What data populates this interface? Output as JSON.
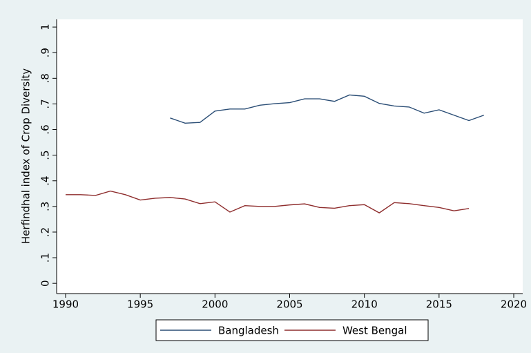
{
  "chart_data": {
    "type": "line",
    "y_label": "Herfindhal index of Crop Diversity",
    "x": [
      1990,
      1991,
      1992,
      1993,
      1994,
      1995,
      1996,
      1997,
      1998,
      1999,
      2000,
      2001,
      2002,
      2003,
      2004,
      2005,
      2006,
      2007,
      2008,
      2009,
      2010,
      2011,
      2012,
      2013,
      2014,
      2015,
      2016,
      2017,
      2018
    ],
    "series": [
      {
        "name": "Bangladesh",
        "color": "#2a4d75",
        "values": [
          null,
          null,
          null,
          null,
          null,
          null,
          null,
          0.645,
          0.625,
          0.628,
          0.672,
          0.68,
          0.68,
          0.695,
          0.701,
          0.705,
          0.72,
          0.72,
          0.71,
          0.735,
          0.73,
          0.702,
          0.692,
          0.688,
          0.664,
          0.677,
          0.656,
          0.635,
          0.656
        ]
      },
      {
        "name": "West Bengal",
        "color": "#8e2d2d",
        "values": [
          0.346,
          0.346,
          0.343,
          0.36,
          0.346,
          0.325,
          0.332,
          0.335,
          0.329,
          0.311,
          0.318,
          0.278,
          0.303,
          0.3,
          0.3,
          0.306,
          0.31,
          0.296,
          0.293,
          0.303,
          0.307,
          0.275,
          0.315,
          0.311,
          0.303,
          0.296,
          0.283,
          0.292,
          null
        ]
      }
    ],
    "xlim": [
      1989.4,
      2020.6
    ],
    "xticks": [
      1990,
      1995,
      2000,
      2005,
      2010,
      2015,
      2020
    ],
    "ylim": [
      -0.04,
      1.03
    ],
    "yticks": [
      0,
      {
        "value": 0.1,
        "label": ".1"
      },
      {
        "value": 0.2,
        "label": ".2"
      },
      {
        "value": 0.3,
        "label": ".3"
      },
      {
        "value": 0.4,
        "label": ".4"
      },
      {
        "value": 0.5,
        "label": ".5"
      },
      {
        "value": 0.6,
        "label": ".6"
      },
      {
        "value": 0.7,
        "label": ".7"
      },
      {
        "value": 0.8,
        "label": ".8"
      },
      {
        "value": 0.9,
        "label": ".9"
      },
      1
    ],
    "grid": false,
    "legend": "bottom"
  }
}
